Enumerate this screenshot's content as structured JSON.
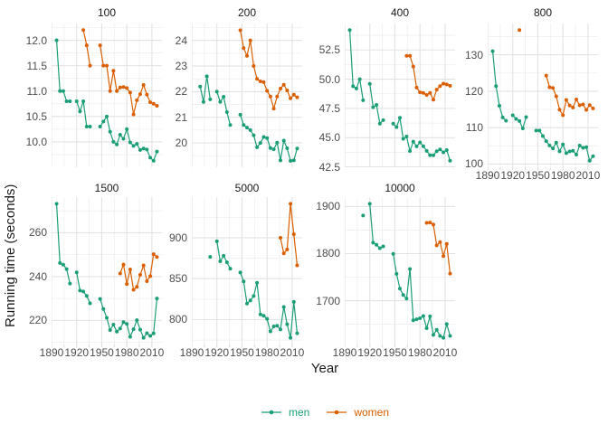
{
  "figure": {
    "ylab": "Running time (seconds)",
    "xlab": "Year",
    "legend": [
      {
        "label": "men",
        "color": "#1B9E77"
      },
      {
        "label": "women",
        "color": "#D95F02"
      }
    ]
  },
  "chart_data": {
    "type": "line",
    "title": "",
    "xlabel": "Year",
    "ylabel": "Running time (seconds)",
    "legend_position": "bottom",
    "grid": "on",
    "xlim": [
      1890,
      2022
    ],
    "x_ticks": [
      1890,
      1920,
      1950,
      1980,
      2010
    ],
    "x_tick_labels": [
      "1890",
      "1920",
      "1950",
      "1980",
      "2010"
    ],
    "series_names": [
      "men",
      "women"
    ],
    "series_colors": {
      "men": "#1B9E77",
      "women": "#D95F02"
    },
    "facets": [
      {
        "label": "100",
        "ylim": [
          9.5,
          12.33
        ],
        "yticks": [
          10.0,
          10.5,
          11.0,
          11.5,
          12.0
        ],
        "ytick_labels": [
          "10.0",
          "10.5",
          "11.0",
          "11.5",
          "12.0"
        ],
        "show_x_axis": false,
        "series": {
          "men": {
            "years": [
              1896,
              1900,
              1904,
              1908,
              1912,
              1920,
              1924,
              1928,
              1932,
              1936,
              1948,
              1952,
              1956,
              1960,
              1964,
              1968,
              1972,
              1976,
              1980,
              1984,
              1988,
              1992,
              1996,
              2000,
              2004,
              2008,
              2012,
              2016
            ],
            "times": [
              12.0,
              11.0,
              11.0,
              10.8,
              10.8,
              10.8,
              10.6,
              10.8,
              10.3,
              10.3,
              10.3,
              10.4,
              10.5,
              10.2,
              10.0,
              9.95,
              10.14,
              10.06,
              10.25,
              9.99,
              9.92,
              9.96,
              9.84,
              9.87,
              9.85,
              9.69,
              9.63,
              9.81
            ]
          },
          "women": {
            "years": [
              1928,
              1932,
              1936,
              1948,
              1952,
              1956,
              1960,
              1964,
              1968,
              1972,
              1976,
              1980,
              1984,
              1988,
              1992,
              1996,
              2000,
              2004,
              2008,
              2012,
              2016
            ],
            "times": [
              12.2,
              11.9,
              11.5,
              11.9,
              11.5,
              11.5,
              11.0,
              11.4,
              11.0,
              11.07,
              11.08,
              11.06,
              10.97,
              10.54,
              10.82,
              10.94,
              11.12,
              10.93,
              10.78,
              10.75,
              10.71
            ]
          }
        }
      },
      {
        "label": "200",
        "ylim": [
          19.05,
          24.66
        ],
        "yticks": [
          20,
          21,
          22,
          23,
          24
        ],
        "ytick_labels": [
          "20",
          "21",
          "22",
          "23",
          "24"
        ],
        "show_x_axis": false,
        "series": {
          "men": {
            "years": [
              1900,
              1904,
              1908,
              1912,
              1920,
              1924,
              1928,
              1932,
              1936,
              1948,
              1952,
              1956,
              1960,
              1964,
              1968,
              1972,
              1976,
              1980,
              1984,
              1988,
              1992,
              1996,
              2000,
              2004,
              2008,
              2012,
              2016
            ],
            "times": [
              22.2,
              21.6,
              22.6,
              21.7,
              22.0,
              21.6,
              21.8,
              21.2,
              20.7,
              21.1,
              20.7,
              20.6,
              20.5,
              20.3,
              19.83,
              20.0,
              20.23,
              20.19,
              19.8,
              19.75,
              20.01,
              19.32,
              20.09,
              19.79,
              19.3,
              19.32,
              19.78
            ]
          },
          "women": {
            "years": [
              1948,
              1952,
              1956,
              1960,
              1964,
              1968,
              1972,
              1976,
              1980,
              1984,
              1988,
              1992,
              1996,
              2000,
              2004,
              2008,
              2012,
              2016
            ],
            "times": [
              24.4,
              23.7,
              23.4,
              24.0,
              23.0,
              22.5,
              22.4,
              22.37,
              22.03,
              21.81,
              21.34,
              21.81,
              22.12,
              22.27,
              22.05,
              21.74,
              21.88,
              21.78
            ]
          }
        }
      },
      {
        "label": "400",
        "ylim": [
          42.47,
          54.76
        ],
        "yticks": [
          42.5,
          45.0,
          47.5,
          50.0,
          52.5
        ],
        "ytick_labels": [
          "42.5",
          "45.0",
          "47.5",
          "50.0",
          "52.5"
        ],
        "show_x_axis": false,
        "series": {
          "men": {
            "years": [
              1896,
              1900,
              1904,
              1908,
              1912,
              1920,
              1924,
              1928,
              1932,
              1936,
              1948,
              1952,
              1956,
              1960,
              1964,
              1968,
              1972,
              1976,
              1980,
              1984,
              1988,
              1992,
              1996,
              2000,
              2004,
              2008,
              2012,
              2016
            ],
            "times": [
              54.2,
              49.4,
              49.2,
              50.0,
              48.2,
              49.6,
              47.6,
              47.8,
              46.2,
              46.5,
              46.2,
              45.9,
              46.7,
              44.9,
              45.1,
              43.86,
              44.66,
              44.26,
              44.6,
              44.27,
              43.87,
              43.5,
              43.49,
              43.84,
              44.0,
              43.75,
              43.94,
              43.03
            ]
          },
          "women": {
            "years": [
              1964,
              1968,
              1972,
              1976,
              1980,
              1984,
              1988,
              1992,
              1996,
              2000,
              2004,
              2008,
              2012,
              2016
            ],
            "times": [
              52.0,
              52.0,
              51.08,
              49.28,
              48.88,
              48.83,
              48.65,
              48.83,
              48.25,
              49.11,
              49.41,
              49.62,
              49.55,
              49.44
            ]
          }
        }
      },
      {
        "label": "800",
        "ylim": [
          99.12,
          138.59
        ],
        "yticks": [
          100,
          110,
          120,
          130
        ],
        "ytick_labels": [
          "100",
          "110",
          "120",
          "130"
        ],
        "show_x_axis": true,
        "series": {
          "men": {
            "years": [
              1896,
              1900,
              1904,
              1908,
              1912,
              1920,
              1924,
              1928,
              1932,
              1936,
              1948,
              1952,
              1956,
              1960,
              1964,
              1968,
              1972,
              1976,
              1980,
              1984,
              1988,
              1992,
              1996,
              2000,
              2004,
              2008,
              2012,
              2016
            ],
            "times": [
              131.0,
              121.4,
              116.0,
              112.8,
              111.9,
              113.4,
              112.4,
              111.8,
              109.8,
              112.9,
              109.2,
              109.2,
              107.7,
              106.3,
              105.1,
              104.3,
              105.9,
              103.5,
              105.4,
              103.0,
              103.45,
              103.66,
              102.58,
              105.08,
              104.45,
              104.65,
              100.91,
              102.15
            ]
          },
          "women": {
            "years": [
              1928,
              1960,
              1964,
              1968,
              1972,
              1976,
              1980,
              1984,
              1988,
              1992,
              1996,
              2000,
              2004,
              2008,
              2012,
              2016
            ],
            "times": [
              136.8,
              124.3,
              121.1,
              120.9,
              118.6,
              114.94,
              113.43,
              117.6,
              116.1,
              115.54,
              117.73,
              116.15,
              116.38,
              114.87,
              116.19,
              115.28
            ]
          }
        }
      },
      {
        "label": "1500",
        "ylim": [
          209.01,
          276.26
        ],
        "yticks": [
          220,
          240,
          260
        ],
        "ytick_labels": [
          "220",
          "240",
          "260"
        ],
        "show_x_axis": true,
        "series": {
          "men": {
            "years": [
              1896,
              1900,
              1904,
              1908,
              1912,
              1920,
              1924,
              1928,
              1932,
              1936,
              1948,
              1952,
              1956,
              1960,
              1964,
              1968,
              1972,
              1976,
              1980,
              1984,
              1988,
              1992,
              1996,
              2000,
              2004,
              2008,
              2012,
              2016
            ],
            "times": [
              273.2,
              246.2,
              245.4,
              243.4,
              236.8,
              241.9,
              233.6,
              233.2,
              231.2,
              227.8,
              229.8,
              225.2,
              221.2,
              215.6,
              218.1,
              214.9,
              216.3,
              219.2,
              218.4,
              212.53,
              215.96,
              220.12,
              215.78,
              212.07,
              214.18,
              212.94,
              214.08,
              230.0
            ]
          },
          "women": {
            "years": [
              1972,
              1976,
              1980,
              1984,
              1988,
              1992,
              1996,
              2000,
              2004,
              2008,
              2012,
              2016
            ],
            "times": [
              241.4,
              245.48,
              236.6,
              243.25,
              233.96,
              235.3,
              240.83,
              245.1,
              237.9,
              240.23,
              250.23,
              248.92
            ]
          }
        }
      },
      {
        "label": "5000",
        "ylim": [
          769.64,
          949.58
        ],
        "yticks": [
          800,
          850,
          900
        ],
        "ytick_labels": [
          "800",
          "850",
          "900"
        ],
        "show_x_axis": true,
        "series": {
          "men": {
            "years": [
              1912,
              1920,
              1924,
              1928,
              1932,
              1936,
              1948,
              1952,
              1956,
              1960,
              1964,
              1968,
              1972,
              1976,
              1980,
              1984,
              1988,
              1992,
              1996,
              2000,
              2004,
              2008,
              2012,
              2016
            ],
            "times": [
              876.6,
              895.6,
              871.2,
              878.0,
              870.0,
              862.2,
              857.6,
              846.6,
              819.6,
              823.4,
              828.8,
              845.0,
              806.4,
              804.76,
              800.91,
              785.59,
              791.7,
              792.52,
              787.96,
              815.49,
              794.39,
              777.82,
              821.66,
              783.3
            ]
          },
          "women": {
            "years": [
              1996,
              2000,
              2004,
              2008,
              2012,
              2016
            ],
            "times": [
              899.88,
              880.79,
              885.65,
              941.4,
              904.25,
              866.17
            ]
          }
        }
      },
      {
        "label": "10000",
        "ylim": [
          1606.94,
          1920.03
        ],
        "yticks": [
          1700,
          1800,
          1900
        ],
        "ytick_labels": [
          "1700",
          "1800",
          "1900"
        ],
        "show_x_axis": true,
        "series": {
          "men": {
            "years": [
              1912,
              1920,
              1924,
              1928,
              1932,
              1936,
              1948,
              1952,
              1956,
              1960,
              1964,
              1968,
              1972,
              1976,
              1980,
              1984,
              1988,
              1992,
              1996,
              2000,
              2004,
              2008,
              2012,
              2016
            ],
            "times": [
              1880.8,
              1905.8,
              1823.2,
              1818.8,
              1811.4,
              1815.4,
              1799.6,
              1757.0,
              1725.6,
              1712.2,
              1704.4,
              1767.4,
              1658.4,
              1660.38,
              1662.7,
              1667.54,
              1641.46,
              1666.7,
              1627.34,
              1638.2,
              1625.1,
              1621.17,
              1650.42,
              1625.17
            ]
          },
          "women": {
            "years": [
              1988,
              1992,
              1996,
              2000,
              2004,
              2008,
              2012,
              2016
            ],
            "times": [
              1865.21,
              1866.02,
              1861.63,
              1817.49,
              1824.36,
              1794.66,
              1820.75,
              1757.45
            ]
          }
        }
      }
    ]
  }
}
